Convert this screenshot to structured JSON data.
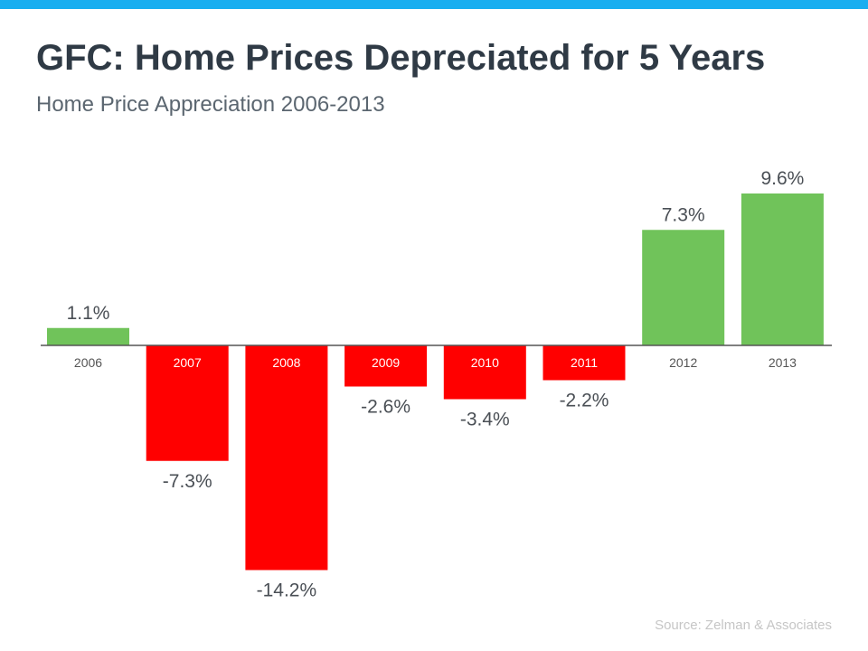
{
  "title": "GFC: Home Prices Depreciated for 5 Years",
  "subtitle": "Home Price Appreciation 2006-2013",
  "source": "Source: Zelman & Associates",
  "colors": {
    "top_bar": "#19aef0",
    "positive": "#70c35a",
    "negative": "#ff0000",
    "axis_line": "#555555",
    "label_text": "#4a4f55",
    "tick_on_positive": "#555555",
    "tick_on_negative": "#ffffff"
  },
  "chart_data": {
    "type": "bar",
    "categories": [
      "2006",
      "2007",
      "2008",
      "2009",
      "2010",
      "2011",
      "2012",
      "2013"
    ],
    "values": [
      1.1,
      -7.3,
      -14.2,
      -2.6,
      -3.4,
      -2.2,
      7.3,
      9.6
    ],
    "data_labels": [
      "1.1%",
      "-7.3%",
      "-14.2%",
      "-2.6%",
      "-3.4%",
      "-2.2%",
      "7.3%",
      "9.6%"
    ],
    "title": "GFC: Home Prices Depreciated for 5 Years",
    "subtitle": "Home Price Appreciation 2006-2013",
    "unit": "%",
    "grid": false,
    "legend": "none"
  }
}
